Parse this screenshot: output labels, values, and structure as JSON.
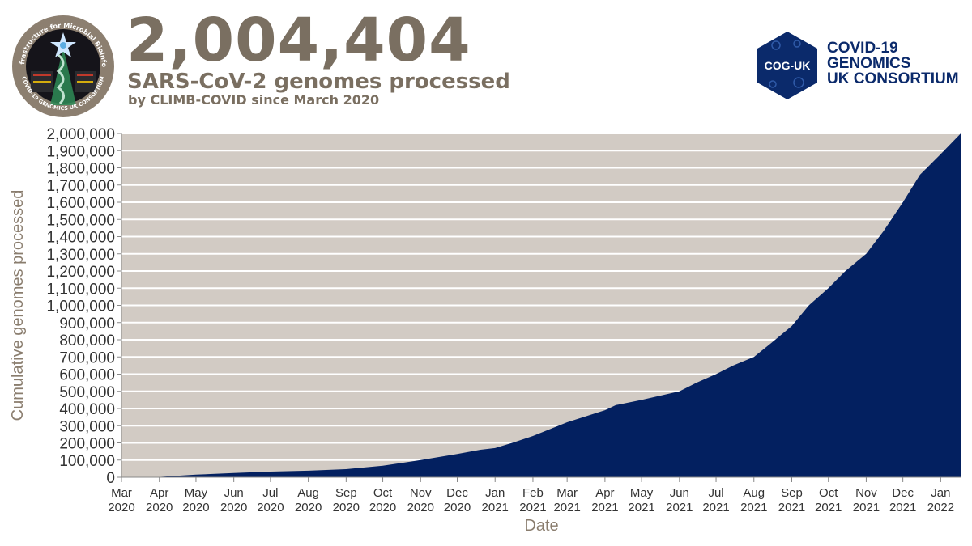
{
  "header": {
    "count": "2,004,404",
    "subtitle": "SARS-CoV-2 genomes processed",
    "subsubtitle": "by CLIMB-COVID since March 2020",
    "left_logo_ring_text": "Cloud Infrastructure for Microbial Bioinformatics",
    "left_logo_bottom_text": "COVID-19 GENOMICS UK CONSORTIUM",
    "right_logo_badge": "COG-UK",
    "right_logo_lines": [
      "COVID-19",
      "GENOMICS",
      "UK CONSORTIUM"
    ]
  },
  "colors": {
    "area": "#032060",
    "plot_background": "#d2cbc4",
    "gridline": "#ffffff",
    "title_text": "#7a6f61",
    "brand_navy": "#0b2a6b"
  },
  "chart_data": {
    "type": "area",
    "xlabel": "Date",
    "ylabel": "Cumulative genomes processed",
    "ylim": [
      0,
      2000000
    ],
    "yticks": [
      "0",
      "100,000",
      "200,000",
      "300,000",
      "400,000",
      "500,000",
      "600,000",
      "700,000",
      "800,000",
      "900,000",
      "1,000,000",
      "1,100,000",
      "1,200,000",
      "1,300,000",
      "1,400,000",
      "1,500,000",
      "1,600,000",
      "1,700,000",
      "1,800,000",
      "1,900,000",
      "2,000,000"
    ],
    "xlim": [
      "2020-03-01",
      "2022-01-18"
    ],
    "xticks": [
      {
        "month": "Mar",
        "year": "2020",
        "date": "2020-03-01"
      },
      {
        "month": "Apr",
        "year": "2020",
        "date": "2020-04-01"
      },
      {
        "month": "May",
        "year": "2020",
        "date": "2020-05-01"
      },
      {
        "month": "Jun",
        "year": "2020",
        "date": "2020-06-01"
      },
      {
        "month": "Jul",
        "year": "2020",
        "date": "2020-07-01"
      },
      {
        "month": "Aug",
        "year": "2020",
        "date": "2020-08-01"
      },
      {
        "month": "Sep",
        "year": "2020",
        "date": "2020-09-01"
      },
      {
        "month": "Oct",
        "year": "2020",
        "date": "2020-10-01"
      },
      {
        "month": "Nov",
        "year": "2020",
        "date": "2020-11-01"
      },
      {
        "month": "Dec",
        "year": "2020",
        "date": "2020-12-01"
      },
      {
        "month": "Jan",
        "year": "2021",
        "date": "2021-01-01"
      },
      {
        "month": "Feb",
        "year": "2021",
        "date": "2021-02-01"
      },
      {
        "month": "Mar",
        "year": "2021",
        "date": "2021-03-01"
      },
      {
        "month": "Apr",
        "year": "2021",
        "date": "2021-04-01"
      },
      {
        "month": "May",
        "year": "2021",
        "date": "2021-05-01"
      },
      {
        "month": "Jun",
        "year": "2021",
        "date": "2021-06-01"
      },
      {
        "month": "Jul",
        "year": "2021",
        "date": "2021-07-01"
      },
      {
        "month": "Aug",
        "year": "2021",
        "date": "2021-08-01"
      },
      {
        "month": "Sep",
        "year": "2021",
        "date": "2021-09-01"
      },
      {
        "month": "Oct",
        "year": "2021",
        "date": "2021-10-01"
      },
      {
        "month": "Nov",
        "year": "2021",
        "date": "2021-11-01"
      },
      {
        "month": "Dec",
        "year": "2021",
        "date": "2021-12-01"
      },
      {
        "month": "Jan",
        "year": "2022",
        "date": "2022-01-01"
      }
    ],
    "series": [
      {
        "points": [
          [
            "2020-03-28",
            0
          ],
          [
            "2020-04-15",
            8000
          ],
          [
            "2020-05-01",
            15000
          ],
          [
            "2020-06-01",
            25000
          ],
          [
            "2020-07-01",
            33000
          ],
          [
            "2020-08-01",
            38000
          ],
          [
            "2020-09-01",
            47000
          ],
          [
            "2020-10-01",
            67000
          ],
          [
            "2020-11-01",
            100000
          ],
          [
            "2020-12-01",
            135000
          ],
          [
            "2020-12-20",
            160000
          ],
          [
            "2021-01-01",
            170000
          ],
          [
            "2021-01-15",
            200000
          ],
          [
            "2021-02-01",
            240000
          ],
          [
            "2021-03-01",
            320000
          ],
          [
            "2021-04-01",
            390000
          ],
          [
            "2021-04-10",
            420000
          ],
          [
            "2021-05-01",
            450000
          ],
          [
            "2021-06-01",
            500000
          ],
          [
            "2021-06-15",
            550000
          ],
          [
            "2021-07-01",
            600000
          ],
          [
            "2021-07-15",
            650000
          ],
          [
            "2021-08-01",
            700000
          ],
          [
            "2021-08-15",
            780000
          ],
          [
            "2021-09-01",
            880000
          ],
          [
            "2021-09-15",
            1000000
          ],
          [
            "2021-10-01",
            1100000
          ],
          [
            "2021-10-15",
            1200000
          ],
          [
            "2021-11-01",
            1300000
          ],
          [
            "2021-11-15",
            1430000
          ],
          [
            "2021-12-01",
            1600000
          ],
          [
            "2021-12-15",
            1760000
          ],
          [
            "2022-01-01",
            1880000
          ],
          [
            "2022-01-18",
            2004404
          ]
        ]
      }
    ]
  }
}
